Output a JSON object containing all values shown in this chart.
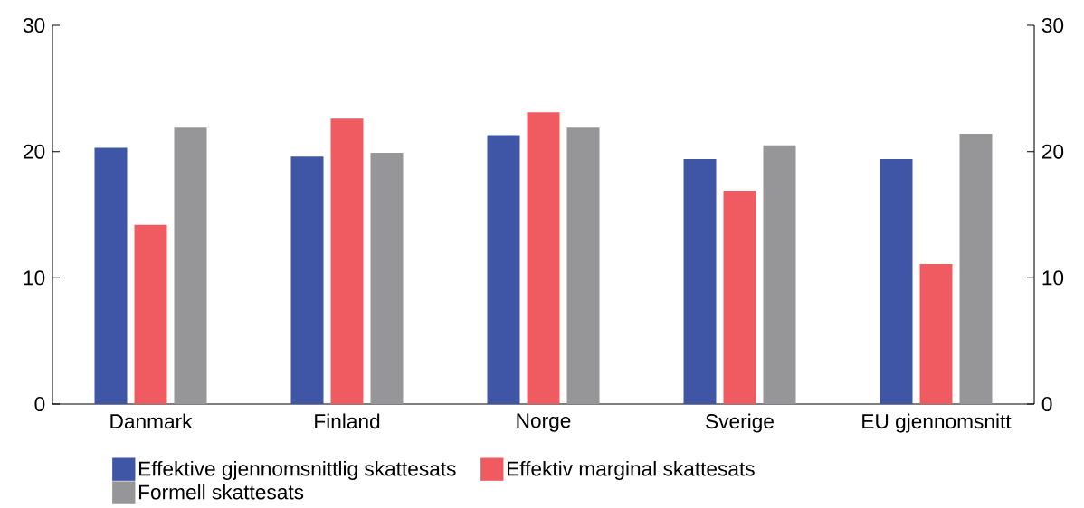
{
  "chart_data": {
    "type": "bar",
    "categories": [
      "Danmark",
      "Finland",
      "Norge",
      "Sverige",
      "EU gjennomsnitt"
    ],
    "series": [
      {
        "name": "Effektive gjennomsnittlig skattesats",
        "color": "#3f55a5",
        "values": [
          20.3,
          19.6,
          21.3,
          19.4,
          19.4
        ]
      },
      {
        "name": "Effektiv marginal skattesats",
        "color": "#f05a61",
        "values": [
          14.2,
          22.6,
          23.1,
          16.9,
          11.1
        ]
      },
      {
        "name": "Formell skattesats",
        "color": "#969597",
        "values": [
          21.9,
          19.9,
          21.9,
          20.5,
          21.4
        ]
      }
    ],
    "ylim": [
      0,
      30
    ],
    "yticks": [
      0,
      10,
      20,
      30
    ],
    "y2lim": [
      0,
      30
    ],
    "y2ticks": [
      0,
      10,
      20,
      30
    ],
    "grid": false,
    "legend": "bottom"
  }
}
